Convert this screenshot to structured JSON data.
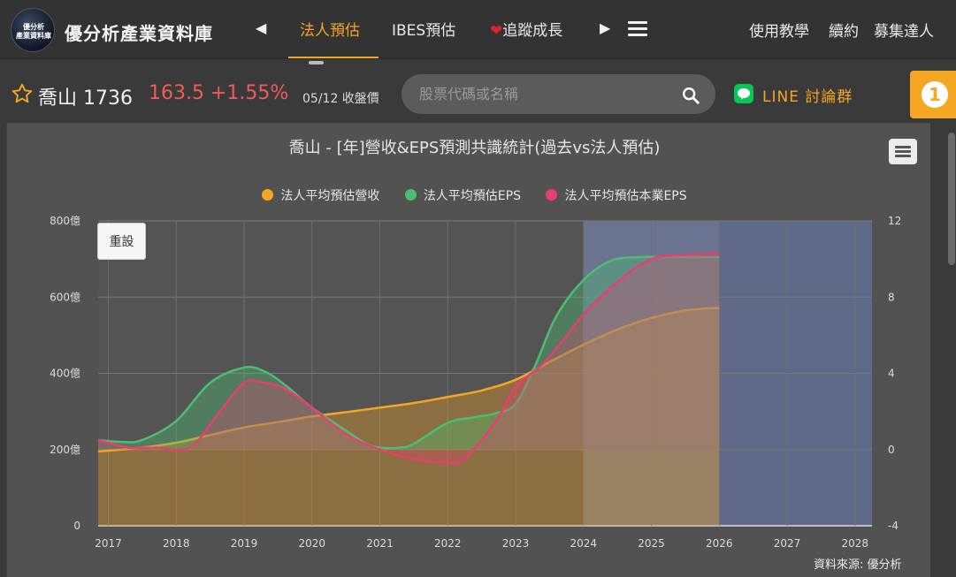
{
  "header": {
    "logo_lines": [
      "優分析",
      "產業資料庫"
    ],
    "brand": "優分析產業資料庫",
    "tabs": [
      {
        "label": "法人預估",
        "active": true
      },
      {
        "label": "IBES預估",
        "active": false
      },
      {
        "label": "追蹤成長",
        "active": false
      }
    ],
    "right_links": [
      "使用教學",
      "續約",
      "募集達人"
    ],
    "accent_color": "#f5a623"
  },
  "stock": {
    "name": "喬山 1736",
    "price_change": "163.5 +1.55%",
    "date_label": "05/12 收盤價",
    "search_placeholder": "股票代碼或名稱",
    "line_link": "LINE 討論群",
    "badge": "1"
  },
  "chart": {
    "title": "喬山 - [年]營收&EPS預測共識統計(過去vs法人預估)",
    "reset_label": "重設",
    "source": "資料來源: 優分析",
    "legend": [
      {
        "name": "法人平均預估營收",
        "color": "#f5a623"
      },
      {
        "name": "法人平均預估EPS",
        "color": "#4dbd74"
      },
      {
        "name": "法人平均預估本業EPS",
        "color": "#e83e72"
      }
    ]
  },
  "chart_data": {
    "type": "area",
    "title": "喬山 - [年]營收&EPS預測共識統計(過去vs法人預估)",
    "x_ticks": [
      "2017",
      "2018",
      "2019",
      "2020",
      "2021",
      "2022",
      "2023",
      "2024",
      "2025",
      "2026",
      "2027",
      "2028"
    ],
    "x_range": [
      2016.85,
      2028.25
    ],
    "y_left": {
      "ticks": [
        "0",
        "200億",
        "400億",
        "600億",
        "800億"
      ],
      "range": [
        0,
        800
      ]
    },
    "y_right": {
      "ticks": [
        "-4",
        "0",
        "4",
        "8",
        "12"
      ],
      "range": [
        -4,
        12
      ]
    },
    "highlight_ranges": [
      {
        "from": 2024.0,
        "to": 2026.0,
        "color": "#6a7390"
      },
      {
        "from": 2026.0,
        "to": 2028.25,
        "color": "#5f6a88"
      }
    ],
    "series": [
      {
        "name": "法人平均預估營收",
        "axis": "left",
        "color": "#f5a623",
        "x": [
          2016.85,
          2017.5,
          2018.0,
          2018.5,
          2019.0,
          2019.5,
          2020.0,
          2020.5,
          2021.0,
          2021.5,
          2022.0,
          2022.5,
          2023.0,
          2023.5,
          2024.0,
          2024.5,
          2025.0,
          2025.5,
          2026.0
        ],
        "y": [
          195,
          205,
          218,
          238,
          258,
          272,
          287,
          298,
          310,
          322,
          338,
          355,
          383,
          430,
          475,
          515,
          545,
          565,
          572
        ]
      },
      {
        "name": "法人平均預估EPS",
        "axis": "right",
        "color": "#4dbd74",
        "x": [
          2016.85,
          2017.2,
          2017.5,
          2018.0,
          2018.5,
          2019.0,
          2019.3,
          2019.6,
          2020.0,
          2020.5,
          2020.8,
          2021.0,
          2021.3,
          2021.5,
          2022.0,
          2022.4,
          2022.7,
          2023.0,
          2023.3,
          2023.6,
          2024.0,
          2024.4,
          2024.8,
          2025.2,
          2025.5,
          2026.0
        ],
        "y": [
          0.5,
          0.4,
          0.5,
          1.5,
          3.5,
          4.3,
          4.1,
          3.4,
          2.2,
          1.0,
          0.3,
          0.1,
          0.1,
          0.3,
          1.4,
          1.7,
          1.9,
          2.4,
          4.5,
          7.0,
          8.9,
          9.9,
          10.1,
          10.1,
          10.1,
          10.1
        ]
      },
      {
        "name": "法人平均預估本業EPS",
        "axis": "right",
        "color": "#e83e72",
        "x": [
          2016.85,
          2017.3,
          2017.7,
          2018.2,
          2018.6,
          2019.0,
          2019.3,
          2019.6,
          2020.0,
          2020.5,
          2021.0,
          2021.5,
          2022.0,
          2022.2,
          2022.5,
          2022.8,
          2023.0,
          2023.4,
          2023.8,
          2024.0,
          2024.5,
          2025.0,
          2025.5,
          2026.0
        ],
        "y": [
          0.5,
          0.1,
          0.1,
          0.1,
          1.8,
          3.5,
          3.5,
          3.2,
          2.2,
          0.8,
          0.0,
          -0.5,
          -0.7,
          -0.6,
          0.5,
          2.0,
          3.3,
          4.5,
          6.2,
          7.1,
          8.8,
          10.0,
          10.2,
          10.3
        ]
      }
    ]
  }
}
